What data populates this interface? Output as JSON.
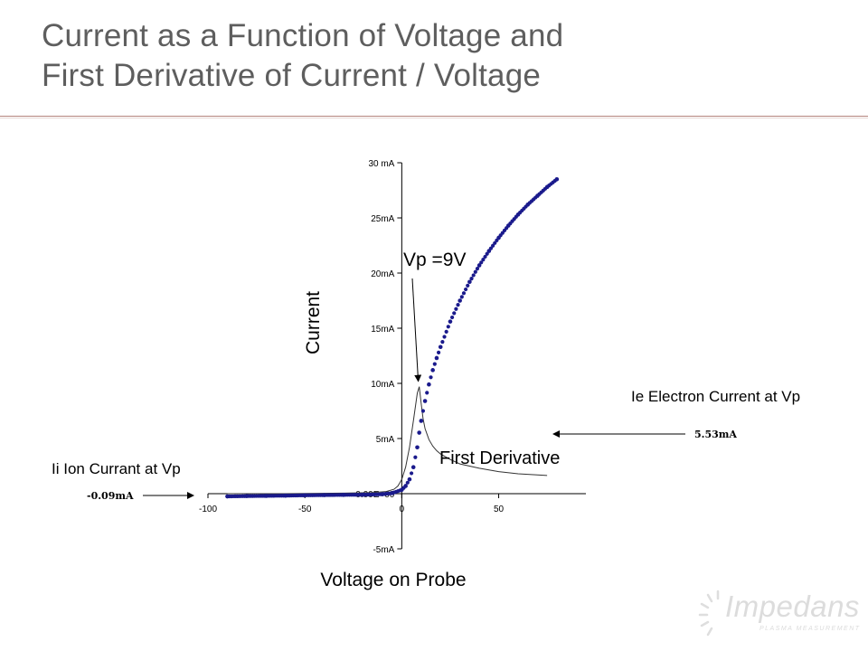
{
  "slide": {
    "title_line1": "Current as a Function of Voltage and",
    "title_line2": "First Derivative of Current / Voltage",
    "logo_text": "Impedans",
    "logo_subtext": "PLASMA MEASUREMENT"
  },
  "annotations": {
    "vp": "Vp =9V",
    "first_derivative": "First Derivative",
    "ie_label": "Ie Electron Current at Vp",
    "ie_value": "5.53mA",
    "ii_label": "Ii Ion Currant at Vp",
    "ii_value": "-0.09mA"
  },
  "chart_data": {
    "type": "scatter",
    "xlabel": "Voltage on Probe",
    "ylabel": "Current",
    "xlim": [
      -100,
      95
    ],
    "ylim": [
      -5,
      30
    ],
    "x_ticks": [
      -100,
      -50,
      0,
      50
    ],
    "x_tick_labels": [
      "-100",
      "-50",
      "0",
      "50"
    ],
    "y_ticks": [
      30,
      25,
      20,
      15,
      10,
      5,
      0,
      -5
    ],
    "y_tick_labels": [
      "30 mA",
      "25mA",
      "20mA",
      "15mA",
      "10mA",
      "5mA",
      "0.00E+00",
      "-5mA"
    ],
    "series": [
      {
        "name": "",
        "style": "dots",
        "color": "#1a1a8c",
        "x": [
          -90,
          -80,
          -70,
          -60,
          -50,
          -40,
          -30,
          -20,
          -10,
          -5,
          0,
          2,
          4,
          6,
          8,
          9,
          10,
          12,
          14,
          16,
          18,
          20,
          25,
          30,
          35,
          40,
          45,
          50,
          55,
          60,
          65,
          70,
          75,
          80
        ],
        "y": [
          -0.25,
          -0.22,
          -0.2,
          -0.18,
          -0.15,
          -0.13,
          -0.11,
          -0.1,
          -0.05,
          0.05,
          0.35,
          0.7,
          1.3,
          2.4,
          4.2,
          5.53,
          6.6,
          8.4,
          9.9,
          11.2,
          12.3,
          13.3,
          15.6,
          17.5,
          19.2,
          20.7,
          22.0,
          23.2,
          24.3,
          25.3,
          26.2,
          27.0,
          27.8,
          28.5
        ]
      },
      {
        "name": "",
        "style": "line",
        "color": "#333333",
        "x": [
          -90,
          -60,
          -30,
          -15,
          -8,
          -4,
          -2,
          0,
          2,
          4,
          6,
          8,
          9,
          10,
          11,
          12,
          14,
          16,
          18,
          20,
          25,
          30,
          40,
          50,
          60,
          70,
          75
        ],
        "y": [
          0.0,
          0.0,
          0.05,
          0.1,
          0.2,
          0.4,
          0.7,
          1.3,
          2.4,
          4.2,
          6.6,
          9.1,
          9.7,
          8.2,
          6.8,
          5.9,
          4.9,
          4.3,
          3.9,
          3.6,
          3.1,
          2.7,
          2.3,
          2.0,
          1.8,
          1.7,
          1.65
        ]
      }
    ]
  }
}
